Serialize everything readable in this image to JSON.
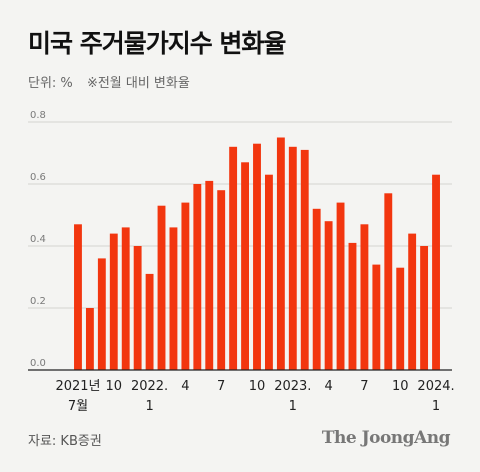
{
  "title": "미국 주거물가지수 변화율",
  "unit_label": "단위: %",
  "note": "※전월 대비 변화율",
  "source": "자료: KB증권",
  "brand": "The JoongAng",
  "colors": {
    "bar": "#f2360f",
    "grid": "#d4d4d0",
    "baseline": "#222222",
    "tick_text": "#7a7a7a"
  },
  "chart_data": {
    "type": "bar",
    "title": "미국 주거물가지수 변화율",
    "ylim": [
      0,
      0.8
    ],
    "yticks": [
      "0.0",
      "0.2",
      "0.4",
      "0.6",
      "0.8"
    ],
    "grid": true,
    "values": [
      0.47,
      0.2,
      0.36,
      0.44,
      0.46,
      0.4,
      0.31,
      0.53,
      0.46,
      0.54,
      0.6,
      0.61,
      0.58,
      0.72,
      0.67,
      0.73,
      0.63,
      0.75,
      0.72,
      0.71,
      0.52,
      0.48,
      0.54,
      0.41,
      0.47,
      0.34,
      0.57,
      0.33,
      0.44,
      0.4,
      0.63
    ],
    "x_tick_labels": [
      {
        "index": 0,
        "lines": [
          "2021년",
          "7월"
        ]
      },
      {
        "index": 3,
        "lines": [
          "10"
        ]
      },
      {
        "index": 6,
        "lines": [
          "2022.",
          "1"
        ]
      },
      {
        "index": 9,
        "lines": [
          "4"
        ]
      },
      {
        "index": 12,
        "lines": [
          "7"
        ]
      },
      {
        "index": 15,
        "lines": [
          "10"
        ]
      },
      {
        "index": 18,
        "lines": [
          "2023.",
          "1"
        ]
      },
      {
        "index": 21,
        "lines": [
          "4"
        ]
      },
      {
        "index": 24,
        "lines": [
          "7"
        ]
      },
      {
        "index": 27,
        "lines": [
          "10"
        ]
      },
      {
        "index": 30,
        "lines": [
          "2024.",
          "1"
        ]
      }
    ]
  }
}
